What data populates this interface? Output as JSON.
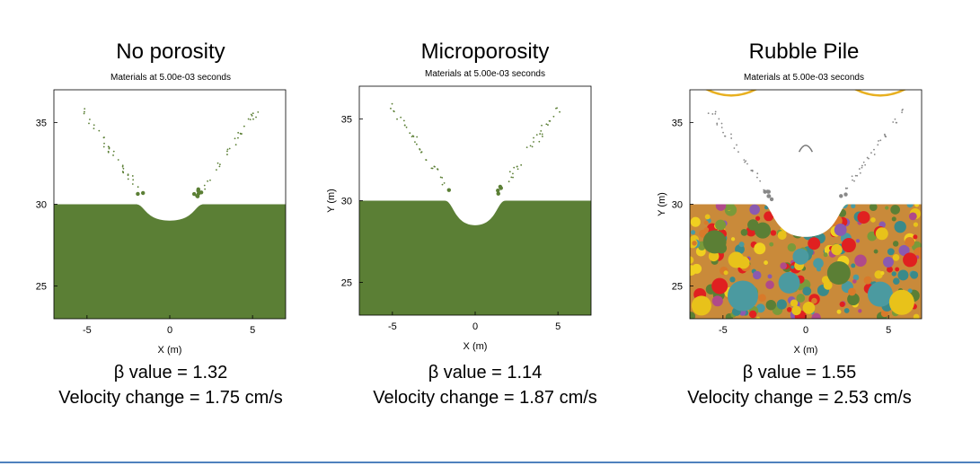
{
  "accent_colors": {
    "ground": "#5b7f35",
    "rule": "#4f81bd"
  },
  "chart_data": [
    {
      "type": "area",
      "title": "No porosity",
      "subtitle": "Materials at 5.00e-03 seconds",
      "xlabel": "X (m)",
      "ylabel": "",
      "xlim": [
        -7,
        7
      ],
      "ylim": [
        23,
        37
      ],
      "xticks": [
        -5,
        0,
        5
      ],
      "yticks": [
        25,
        30,
        35
      ],
      "surface_y": 30,
      "crater_depth_y": 29,
      "crater_halfwidth_x": 1.5,
      "fill_color": "#5b7f35",
      "beta_label": "β value = 1.32",
      "velocity_label": "Velocity change = 1.75 cm/s"
    },
    {
      "type": "area",
      "title": "Microporosity",
      "subtitle": "Materials at 5.00e-03 seconds",
      "xlabel": "X (m)",
      "ylabel": "Y (m)",
      "xlim": [
        -7,
        7
      ],
      "ylim": [
        23,
        37
      ],
      "xticks": [
        -5,
        0,
        5
      ],
      "yticks": [
        25,
        30,
        35
      ],
      "surface_y": 30,
      "crater_depth_y": 28.5,
      "crater_halfwidth_x": 1.3,
      "fill_color": "#5b7f35",
      "beta_label": "β value = 1.14",
      "velocity_label": "Velocity change = 1.87 cm/s"
    },
    {
      "type": "area",
      "title": "Rubble Pile",
      "subtitle": "Materials at 5.00e-03 seconds",
      "xlabel": "X (m)",
      "ylabel": "Y (m)",
      "xlim": [
        -7,
        7
      ],
      "ylim": [
        23,
        37
      ],
      "xticks": [
        -5,
        0,
        5
      ],
      "yticks": [
        25,
        30,
        35
      ],
      "surface_y": 30,
      "crater_depth_y": 28,
      "crater_halfwidth_x": 2,
      "fill_color": "mixed",
      "beta_label": "β value = 1.55",
      "velocity_label": "Velocity change = 2.53 cm/s"
    }
  ]
}
